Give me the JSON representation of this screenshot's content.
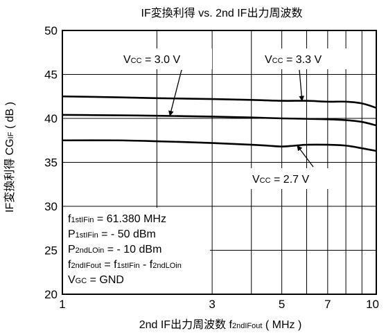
{
  "chart_data": {
    "type": "line",
    "title": "IF変換利得 vs. 2nd IF出力周波数",
    "xlabel": {
      "main": "2nd IF出力周波数",
      "symbol_base": "f",
      "symbol_sub": "2ndIFout",
      "unit": "( MHz )"
    },
    "ylabel": {
      "main": "IF変換利得",
      "symbol_base": "CG",
      "symbol_sub": "IF",
      "unit": "( dB )"
    },
    "xscale": "log",
    "xlim": [
      1,
      10
    ],
    "ylim": [
      20,
      50
    ],
    "x_ticks": [
      1,
      3,
      5,
      7,
      10
    ],
    "x_tick_labels": [
      "1",
      "3",
      "5",
      "7",
      "10"
    ],
    "x_minor_gridlines": [
      2,
      3,
      4,
      5,
      6,
      7,
      8,
      9
    ],
    "y_ticks": [
      20,
      25,
      30,
      35,
      40,
      45,
      50
    ],
    "y_tick_labels": [
      "20",
      "25",
      "30",
      "35",
      "40",
      "45",
      "50"
    ],
    "grid": true,
    "series": [
      {
        "x": [
          1,
          1.5,
          2,
          3,
          4,
          5,
          6,
          7,
          8,
          9,
          10
        ],
        "values": [
          42.5,
          42.4,
          42.3,
          42.2,
          42.1,
          42.0,
          42.0,
          41.9,
          41.9,
          41.7,
          41.2
        ]
      },
      {
        "x": [
          1,
          1.5,
          2,
          3,
          4,
          5,
          6,
          7,
          8,
          9,
          10
        ],
        "values": [
          40.4,
          40.35,
          40.3,
          40.2,
          40.1,
          40.0,
          39.95,
          39.9,
          39.8,
          39.6,
          39.2
        ]
      },
      {
        "x": [
          1,
          1.5,
          2,
          3,
          4,
          4.5,
          5,
          5.5,
          6,
          7,
          8,
          9,
          10
        ],
        "values": [
          37.5,
          37.5,
          37.4,
          37.2,
          37.0,
          36.9,
          36.8,
          36.9,
          37.0,
          37.0,
          36.9,
          36.6,
          36.3
        ]
      }
    ],
    "annotations": [
      {
        "base": "V",
        "sub": "CC",
        "value": " = 3.0 V",
        "arrow_to": [
          2.2,
          40.3
        ]
      },
      {
        "base": "V",
        "sub": "CC",
        "value": " = 3.3 V",
        "arrow_to": [
          5.8,
          42.0
        ]
      },
      {
        "base": "V",
        "sub": "CC",
        "value": " = 2.7 V",
        "arrow_to": [
          5.6,
          36.9
        ]
      }
    ],
    "conditions": [
      {
        "segments": [
          [
            "f",
            ""
          ],
          [
            "1stIFin",
            "sub"
          ],
          [
            " = 61.380 MHz",
            ""
          ]
        ]
      },
      {
        "segments": [
          [
            "P",
            ""
          ],
          [
            "1stIFin",
            "sub"
          ],
          [
            " =  - 50 dBm",
            ""
          ]
        ]
      },
      {
        "segments": [
          [
            "P",
            ""
          ],
          [
            "2ndLOin",
            "sub"
          ],
          [
            " =  - 10 dBm",
            ""
          ]
        ]
      },
      {
        "segments": [
          [
            "f",
            ""
          ],
          [
            "2ndIFout",
            "sub"
          ],
          [
            " = f",
            ""
          ],
          [
            "1stIFin",
            "sub"
          ],
          [
            " - f",
            ""
          ],
          [
            "2ndLOin",
            "sub"
          ]
        ]
      },
      {
        "segments": [
          [
            "V",
            ""
          ],
          [
            "GC",
            "sub"
          ],
          [
            " = GND",
            ""
          ]
        ]
      }
    ]
  }
}
